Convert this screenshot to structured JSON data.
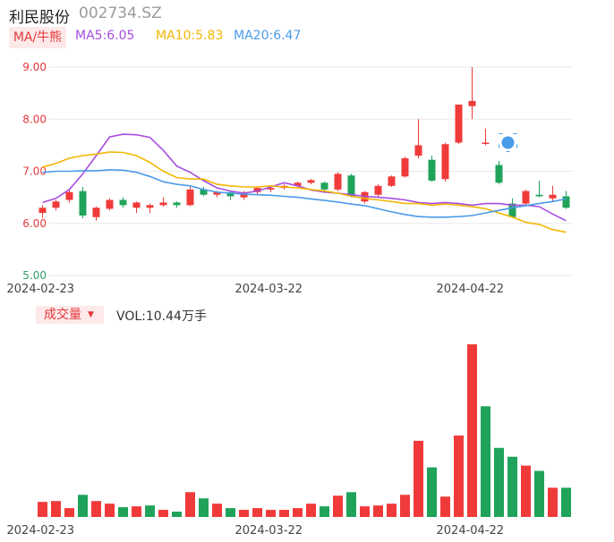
{
  "stock": {
    "name": "利民股份",
    "code": "002734.SZ"
  },
  "ma_bar": {
    "button_label": "MA/牛熊",
    "ma5": {
      "label": "MA5:6.05",
      "color": "#a64ee0"
    },
    "ma10": {
      "label": "MA10:5.83",
      "color": "#f2b705"
    },
    "ma20": {
      "label": "MA20:6.47",
      "color": "#4a9be8"
    }
  },
  "volume_bar": {
    "button_label": "成交量",
    "vol_label": "VOL:10.44万手"
  },
  "colors": {
    "up": "#f03a3a",
    "down": "#1fa35b",
    "grid": "#e9e9e9",
    "axis_red": "#e5383b"
  },
  "chart_data": [
    {
      "type": "candlestick",
      "yticks": [
        "9.00",
        "8.00",
        "7.00",
        "6.00",
        "5.00"
      ],
      "ylim": [
        5.0,
        9.0
      ],
      "xticks": [
        {
          "label": "2024-02-23",
          "index": 0
        },
        {
          "label": "2024-03-22",
          "index": 17
        },
        {
          "label": "2024-04-22",
          "index": 32
        }
      ],
      "candles": [
        {
          "o": 6.2,
          "c": 6.3,
          "h": 6.35,
          "l": 6.1
        },
        {
          "o": 6.3,
          "c": 6.42,
          "h": 6.45,
          "l": 6.25
        },
        {
          "o": 6.45,
          "c": 6.6,
          "h": 6.65,
          "l": 6.4
        },
        {
          "o": 6.62,
          "c": 6.15,
          "h": 6.7,
          "l": 6.1
        },
        {
          "o": 6.12,
          "c": 6.3,
          "h": 6.32,
          "l": 6.05
        },
        {
          "o": 6.28,
          "c": 6.45,
          "h": 6.48,
          "l": 6.25
        },
        {
          "o": 6.45,
          "c": 6.35,
          "h": 6.5,
          "l": 6.3
        },
        {
          "o": 6.3,
          "c": 6.4,
          "h": 6.42,
          "l": 6.2
        },
        {
          "o": 6.3,
          "c": 6.35,
          "h": 6.38,
          "l": 6.2
        },
        {
          "o": 6.35,
          "c": 6.4,
          "h": 6.5,
          "l": 6.32
        },
        {
          "o": 6.4,
          "c": 6.35,
          "h": 6.42,
          "l": 6.3
        },
        {
          "o": 6.35,
          "c": 6.65,
          "h": 6.7,
          "l": 6.33
        },
        {
          "o": 6.65,
          "c": 6.55,
          "h": 6.7,
          "l": 6.52
        },
        {
          "o": 6.55,
          "c": 6.6,
          "h": 6.62,
          "l": 6.5
        },
        {
          "o": 6.6,
          "c": 6.52,
          "h": 6.62,
          "l": 6.45
        },
        {
          "o": 6.5,
          "c": 6.6,
          "h": 6.62,
          "l": 6.45
        },
        {
          "o": 6.6,
          "c": 6.68,
          "h": 6.7,
          "l": 6.55
        },
        {
          "o": 6.65,
          "c": 6.68,
          "h": 6.72,
          "l": 6.6
        },
        {
          "o": 6.68,
          "c": 6.72,
          "h": 6.75,
          "l": 6.65
        },
        {
          "o": 6.72,
          "c": 6.78,
          "h": 6.8,
          "l": 6.7
        },
        {
          "o": 6.78,
          "c": 6.83,
          "h": 6.85,
          "l": 6.75
        },
        {
          "o": 6.78,
          "c": 6.65,
          "h": 6.8,
          "l": 6.6
        },
        {
          "o": 6.65,
          "c": 6.95,
          "h": 6.98,
          "l": 6.62
        },
        {
          "o": 6.92,
          "c": 6.52,
          "h": 6.95,
          "l": 6.5
        },
        {
          "o": 6.42,
          "c": 6.6,
          "h": 6.62,
          "l": 6.38
        },
        {
          "o": 6.55,
          "c": 6.72,
          "h": 6.75,
          "l": 6.5
        },
        {
          "o": 6.72,
          "c": 6.9,
          "h": 6.92,
          "l": 6.7
        },
        {
          "o": 6.9,
          "c": 7.25,
          "h": 7.28,
          "l": 6.88
        },
        {
          "o": 7.3,
          "c": 7.5,
          "h": 8.0,
          "l": 7.25
        },
        {
          "o": 7.22,
          "c": 6.82,
          "h": 7.3,
          "l": 6.8
        },
        {
          "o": 6.85,
          "c": 7.52,
          "h": 7.55,
          "l": 6.8
        },
        {
          "o": 7.55,
          "c": 8.28,
          "h": 8.28,
          "l": 7.52
        },
        {
          "o": 8.25,
          "c": 8.35,
          "h": 9.0,
          "l": 8.0
        },
        {
          "o": 7.55,
          "c": 7.55,
          "h": 7.82,
          "l": 7.5
        },
        {
          "o": 7.12,
          "c": 6.78,
          "h": 7.2,
          "l": 6.75
        },
        {
          "o": 6.38,
          "c": 6.12,
          "h": 6.48,
          "l": 6.1
        },
        {
          "o": 6.38,
          "c": 6.62,
          "h": 6.65,
          "l": 6.35
        },
        {
          "o": 6.55,
          "c": 6.52,
          "h": 6.82,
          "l": 6.5
        },
        {
          "o": 6.48,
          "c": 6.55,
          "h": 6.72,
          "l": 6.42
        },
        {
          "o": 6.52,
          "c": 6.3,
          "h": 6.62,
          "l": 6.28
        }
      ],
      "series": [
        {
          "name": "MA5",
          "color": "#a64ee0",
          "values": [
            6.4,
            6.48,
            6.65,
            6.95,
            7.3,
            7.66,
            7.71,
            7.7,
            7.65,
            7.4,
            7.1,
            6.98,
            6.82,
            6.68,
            6.62,
            6.58,
            6.62,
            6.7,
            6.78,
            6.72,
            6.64,
            6.6,
            6.58,
            6.55,
            6.52,
            6.5,
            6.48,
            6.45,
            6.4,
            6.38,
            6.4,
            6.38,
            6.35,
            6.38,
            6.38,
            6.35,
            6.35,
            6.32,
            6.18,
            6.05
          ]
        },
        {
          "name": "MA10",
          "color": "#f2b705",
          "values": [
            7.08,
            7.15,
            7.25,
            7.3,
            7.33,
            7.37,
            7.36,
            7.3,
            7.17,
            7.0,
            6.88,
            6.85,
            6.85,
            6.75,
            6.72,
            6.7,
            6.7,
            6.72,
            6.7,
            6.68,
            6.65,
            6.62,
            6.58,
            6.52,
            6.48,
            6.45,
            6.42,
            6.38,
            6.38,
            6.35,
            6.37,
            6.35,
            6.32,
            6.28,
            6.2,
            6.12,
            6.02,
            5.98,
            5.88,
            5.83
          ]
        },
        {
          "name": "MA20",
          "color": "#4a9be8",
          "values": [
            6.98,
            7.0,
            7.0,
            7.01,
            7.01,
            7.03,
            7.02,
            6.98,
            6.9,
            6.8,
            6.75,
            6.72,
            6.65,
            6.6,
            6.58,
            6.56,
            6.55,
            6.54,
            6.52,
            6.5,
            6.47,
            6.44,
            6.41,
            6.37,
            6.34,
            6.28,
            6.22,
            6.17,
            6.13,
            6.12,
            6.12,
            6.13,
            6.15,
            6.2,
            6.25,
            6.3,
            6.34,
            6.38,
            6.42,
            6.47
          ]
        }
      ]
    },
    {
      "type": "bar",
      "title": "成交量",
      "xticks": [
        {
          "label": "2024-02-23",
          "index": 0
        },
        {
          "label": "2024-03-22",
          "index": 17
        },
        {
          "label": "2024-04-22",
          "index": 32
        }
      ],
      "values": [
        1.7,
        1.8,
        1.0,
        2.5,
        1.8,
        1.5,
        1.1,
        1.2,
        1.3,
        0.8,
        0.6,
        2.8,
        2.1,
        1.5,
        1.0,
        0.8,
        1.0,
        0.8,
        0.8,
        1.0,
        1.5,
        1.2,
        2.4,
        2.8,
        1.2,
        1.3,
        1.5,
        2.5,
        8.6,
        5.6,
        2.3,
        9.2,
        19.5,
        12.5,
        7.8,
        6.8,
        5.8,
        5.2,
        3.3,
        3.3
      ],
      "directions": [
        "up",
        "up",
        "up",
        "down",
        "up",
        "up",
        "down",
        "up",
        "down",
        "up",
        "down",
        "up",
        "down",
        "up",
        "down",
        "up",
        "up",
        "up",
        "up",
        "up",
        "up",
        "down",
        "up",
        "down",
        "up",
        "up",
        "up",
        "up",
        "up",
        "down",
        "up",
        "up",
        "up",
        "down",
        "down",
        "down",
        "up",
        "down",
        "up",
        "down"
      ],
      "ylim": [
        0,
        20
      ]
    }
  ]
}
